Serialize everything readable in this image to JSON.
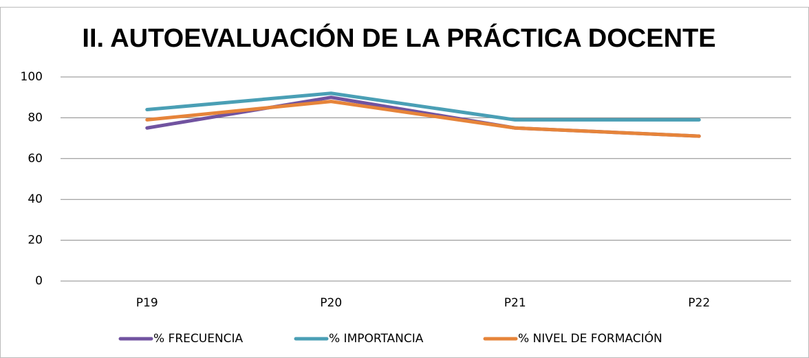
{
  "chart_data": {
    "type": "line",
    "title": "II. AUTOEVALUACIÓN DE LA PRÁCTICA DOCENTE",
    "categories": [
      "P19",
      "P20",
      "P21",
      "P22"
    ],
    "series": [
      {
        "name": "% FRECUENCIA",
        "color": "#7153a0",
        "values": [
          75,
          90,
          75,
          71
        ]
      },
      {
        "name": "% IMPORTANCIA",
        "color": "#4a9fb5",
        "values": [
          84,
          92,
          79,
          79
        ]
      },
      {
        "name": "% NIVEL DE FORMACIÓN",
        "color": "#e6843a",
        "values": [
          79,
          88,
          75,
          71
        ]
      }
    ],
    "ylim": [
      0,
      100
    ],
    "yticks": [
      0,
      20,
      40,
      60,
      80,
      100
    ],
    "grid": true,
    "legend": "bottom"
  }
}
